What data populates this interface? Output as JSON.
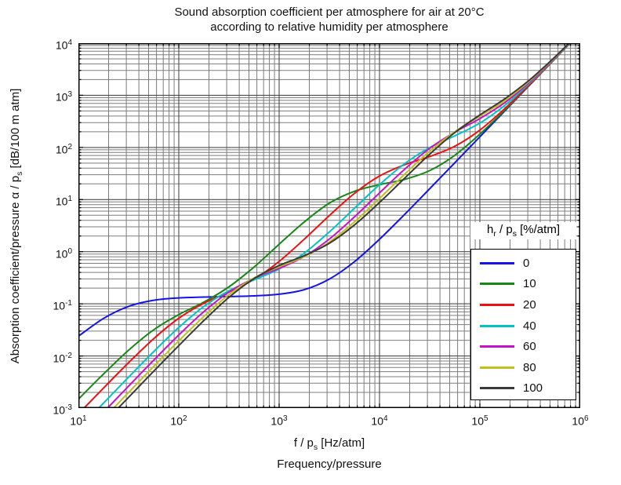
{
  "title": {
    "line1": "Sound absorption coefficient per atmosphere for air at 20°C",
    "line2": "according to relative humidity per atmosphere"
  },
  "chart_data": {
    "type": "line",
    "title": "Sound absorption coefficient per atmosphere for air at 20°C according to relative humidity per atmosphere",
    "xlabel": [
      {
        "t": "f / p"
      },
      {
        "t": "s",
        "sub": true
      },
      {
        "t": " [Hz/atm]"
      }
    ],
    "xlabel_line2": "Frequency/pressure",
    "ylabel": [
      {
        "t": "Absorption coefficient/pressure α / p"
      },
      {
        "t": "s",
        "sub": true
      },
      {
        "t": " [dB/100 m atm]"
      }
    ],
    "x_scale": "log",
    "y_scale": "log",
    "x_range_exponents": [
      1,
      6
    ],
    "y_range_exponents": [
      -3,
      4
    ],
    "x_tick_exponents": [
      1,
      2,
      3,
      4,
      5,
      6
    ],
    "y_tick_exponents": [
      4,
      3,
      2,
      1,
      0,
      -1,
      -2,
      -3
    ],
    "minor_grid_mantissas": [
      2,
      3,
      4,
      5,
      6,
      7,
      8,
      9
    ],
    "grid": {
      "on": true,
      "major_color": "#4c4c4c",
      "minor_color": "#7d7d7d"
    },
    "axis_color": "#000000",
    "legend": {
      "title": [
        {
          "t": "h"
        },
        {
          "t": "r",
          "sub": true
        },
        {
          "t": " / p"
        },
        {
          "t": "s",
          "sub": true
        },
        {
          "t": " [%/atm]"
        }
      ],
      "position": "inside-right-lower"
    },
    "x": [
      10,
      17.8,
      31.6,
      56.2,
      100,
      178,
      316,
      562,
      1000,
      1780,
      3160,
      5620,
      10000,
      17800,
      31600,
      56200,
      100000,
      178000,
      316000,
      562000,
      1000000
    ],
    "series": [
      {
        "name": "0",
        "color": "#1414E6",
        "y": [
          0.0239,
          0.0525,
          0.0894,
          0.117,
          0.13,
          0.135,
          0.138,
          0.142,
          0.153,
          0.187,
          0.298,
          0.642,
          1.73,
          5.19,
          16.1,
          50.7,
          160,
          506,
          1600,
          5050,
          16000
        ]
      },
      {
        "name": "10",
        "color": "#178717",
        "y": [
          0.00148,
          0.00452,
          0.0129,
          0.0317,
          0.062,
          0.108,
          0.212,
          0.508,
          1.39,
          3.72,
          8.52,
          14.4,
          19.3,
          24.4,
          35.9,
          70.6,
          180,
          526,
          1620,
          5070,
          16000
        ]
      },
      {
        "name": "20",
        "color": "#EE1111",
        "y": [
          0.000775,
          0.00243,
          0.00743,
          0.0214,
          0.0529,
          0.103,
          0.168,
          0.295,
          0.652,
          1.74,
          4.93,
          13.1,
          28.3,
          46.7,
          66.8,
          105,
          215,
          562,
          1650,
          5110,
          16000
        ]
      },
      {
        "name": "40",
        "color": "#00C3C3",
        "y": [
          0.000397,
          0.00125,
          0.00392,
          0.0121,
          0.0351,
          0.0891,
          0.178,
          0.287,
          0.465,
          0.939,
          2.39,
          6.8,
          19.3,
          48.9,
          99.2,
          167,
          293,
          645,
          1740,
          5200,
          16100
        ]
      },
      {
        "name": "60",
        "color": "#C713C7",
        "y": [
          0.000265,
          0.000837,
          0.00264,
          0.00828,
          0.0252,
          0.071,
          0.168,
          0.309,
          0.48,
          0.809,
          1.75,
          4.65,
          13.4,
          38.2,
          96.0,
          196,
          357,
          728,
          1830,
          5290,
          16200
        ]
      },
      {
        "name": "80",
        "color": "#BFBF20",
        "y": [
          0.0002,
          0.000631,
          0.00199,
          0.0063,
          0.0195,
          0.0574,
          0.15,
          0.314,
          0.515,
          0.806,
          1.53,
          3.72,
          10.5,
          30.6,
          84.5,
          200,
          399,
          800,
          1920,
          5380,
          16300
        ]
      },
      {
        "name": "100",
        "color": "#3A3A3A",
        "y": [
          0.00016,
          0.000511,
          0.00161,
          0.00508,
          0.0158,
          0.0478,
          0.133,
          0.305,
          0.543,
          0.839,
          1.45,
          3.25,
          8.78,
          25.7,
          74.0,
          192,
          420,
          861,
          2000,
          5480,
          16400
        ]
      }
    ]
  }
}
